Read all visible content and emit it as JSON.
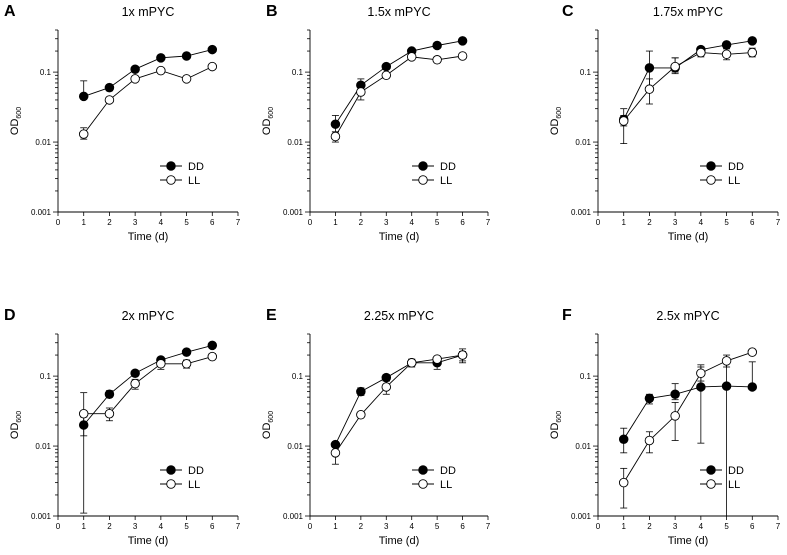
{
  "chart_data": [
    {
      "panel": "A",
      "title": "1x mPYC",
      "type": "line",
      "xlabel": "Time (d)",
      "ylabel": "OD",
      "ylabel_sub": "600",
      "xlim": [
        0,
        7
      ],
      "ylim": [
        0.001,
        0.4
      ],
      "yscale": "log",
      "xticks": [
        "0",
        "1",
        "2",
        "3",
        "4",
        "5",
        "6",
        "7"
      ],
      "yticks": [
        "0.001",
        "0.01",
        "0.1"
      ],
      "legend": [
        "DD",
        "LL"
      ],
      "series": [
        {
          "name": "DD",
          "marker": "filled",
          "x": [
            1,
            2,
            3,
            4,
            5,
            6
          ],
          "y": [
            0.045,
            0.06,
            0.11,
            0.16,
            0.17,
            0.21
          ],
          "err_low": [
            0.045,
            0.054,
            0.11,
            0.16,
            0.17,
            0.21
          ],
          "err_high": [
            0.075,
            0.066,
            0.11,
            0.16,
            0.17,
            0.21
          ]
        },
        {
          "name": "LL",
          "marker": "open",
          "x": [
            1,
            2,
            3,
            4,
            5,
            6
          ],
          "y": [
            0.013,
            0.04,
            0.08,
            0.105,
            0.08,
            0.12
          ],
          "err_low": [
            0.011,
            0.04,
            0.08,
            0.105,
            0.08,
            0.12
          ],
          "err_high": [
            0.016,
            0.04,
            0.08,
            0.105,
            0.08,
            0.12
          ]
        }
      ]
    },
    {
      "panel": "B",
      "title": "1.5x mPYC",
      "type": "line",
      "xlabel": "Time (d)",
      "ylabel": "OD",
      "ylabel_sub": "600",
      "xlim": [
        0,
        7
      ],
      "ylim": [
        0.001,
        0.4
      ],
      "yscale": "log",
      "xticks": [
        "0",
        "1",
        "2",
        "3",
        "4",
        "5",
        "6",
        "7"
      ],
      "yticks": [
        "0.001",
        "0.01",
        "0.1"
      ],
      "legend": [
        "DD",
        "LL"
      ],
      "series": [
        {
          "name": "DD",
          "marker": "filled",
          "x": [
            1,
            2,
            3,
            4,
            5,
            6
          ],
          "y": [
            0.018,
            0.065,
            0.12,
            0.2,
            0.24,
            0.28
          ],
          "err_low": [
            0.014,
            0.055,
            0.12,
            0.2,
            0.24,
            0.28
          ],
          "err_high": [
            0.024,
            0.08,
            0.12,
            0.2,
            0.24,
            0.28
          ]
        },
        {
          "name": "LL",
          "marker": "open",
          "x": [
            1,
            2,
            3,
            4,
            5,
            6
          ],
          "y": [
            0.012,
            0.052,
            0.09,
            0.165,
            0.15,
            0.17
          ],
          "err_low": [
            0.01,
            0.04,
            0.09,
            0.165,
            0.15,
            0.17
          ],
          "err_high": [
            0.014,
            0.065,
            0.09,
            0.165,
            0.15,
            0.17
          ]
        }
      ]
    },
    {
      "panel": "C",
      "title": "1.75x mPYC",
      "type": "line",
      "xlabel": "Time (d)",
      "ylabel": "OD",
      "ylabel_sub": "600",
      "xlim": [
        0,
        7
      ],
      "ylim": [
        0.001,
        0.4
      ],
      "yscale": "log",
      "xticks": [
        "0",
        "1",
        "2",
        "3",
        "4",
        "5",
        "6",
        "7"
      ],
      "yticks": [
        "0.001",
        "0.01",
        "0.1"
      ],
      "legend": [
        "DD",
        "LL"
      ],
      "series": [
        {
          "name": "DD",
          "marker": "filled",
          "x": [
            1,
            2,
            3,
            4,
            5,
            6
          ],
          "y": [
            0.021,
            0.115,
            0.115,
            0.21,
            0.245,
            0.28
          ],
          "err_low": [
            0.0095,
            0.06,
            0.095,
            0.2,
            0.245,
            0.28
          ],
          "err_high": [
            0.03,
            0.2,
            0.16,
            0.23,
            0.245,
            0.28
          ]
        },
        {
          "name": "LL",
          "marker": "open",
          "x": [
            1,
            2,
            3,
            4,
            5,
            6
          ],
          "y": [
            0.02,
            0.057,
            0.12,
            0.19,
            0.18,
            0.19
          ],
          "err_low": [
            0.017,
            0.035,
            0.1,
            0.165,
            0.15,
            0.165
          ],
          "err_high": [
            0.024,
            0.08,
            0.16,
            0.22,
            0.215,
            0.22
          ]
        }
      ]
    },
    {
      "panel": "D",
      "title": "2x mPYC",
      "type": "line",
      "xlabel": "Time (d)",
      "ylabel": "OD",
      "ylabel_sub": "600",
      "xlim": [
        0,
        7
      ],
      "ylim": [
        0.001,
        0.4
      ],
      "yscale": "log",
      "xticks": [
        "0",
        "1",
        "2",
        "3",
        "4",
        "5",
        "6",
        "7"
      ],
      "yticks": [
        "0.001",
        "0.01",
        "0.1"
      ],
      "legend": [
        "DD",
        "LL"
      ],
      "series": [
        {
          "name": "DD",
          "marker": "filled",
          "x": [
            1,
            2,
            3,
            4,
            5,
            6
          ],
          "y": [
            0.02,
            0.055,
            0.11,
            0.17,
            0.22,
            0.275
          ],
          "err_low": [
            0.0011,
            0.05,
            0.11,
            0.17,
            0.22,
            0.275
          ],
          "err_high": [
            0.026,
            0.062,
            0.11,
            0.17,
            0.22,
            0.275
          ]
        },
        {
          "name": "LL",
          "marker": "open",
          "x": [
            1,
            2,
            3,
            4,
            5,
            6
          ],
          "y": [
            0.029,
            0.029,
            0.078,
            0.15,
            0.15,
            0.19
          ],
          "err_low": [
            0.014,
            0.023,
            0.065,
            0.125,
            0.13,
            0.175
          ],
          "err_high": [
            0.058,
            0.035,
            0.09,
            0.175,
            0.17,
            0.21
          ]
        }
      ]
    },
    {
      "panel": "E",
      "title": "2.25x mPYC",
      "type": "line",
      "xlabel": "Time (d)",
      "ylabel": "OD",
      "ylabel_sub": "600",
      "xlim": [
        0,
        7
      ],
      "ylim": [
        0.001,
        0.4
      ],
      "yscale": "log",
      "xticks": [
        "0",
        "1",
        "2",
        "3",
        "4",
        "5",
        "6",
        "7"
      ],
      "yticks": [
        "0.001",
        "0.01",
        "0.1"
      ],
      "legend": [
        "DD",
        "LL"
      ],
      "series": [
        {
          "name": "DD",
          "marker": "filled",
          "x": [
            1,
            2,
            3,
            4,
            5,
            6
          ],
          "y": [
            0.0105,
            0.06,
            0.095,
            0.155,
            0.155,
            0.2
          ],
          "err_low": [
            0.0105,
            0.053,
            0.085,
            0.155,
            0.125,
            0.165
          ],
          "err_high": [
            0.0105,
            0.068,
            0.105,
            0.155,
            0.175,
            0.225
          ]
        },
        {
          "name": "LL",
          "marker": "open",
          "x": [
            1,
            2,
            3,
            4,
            5,
            6
          ],
          "y": [
            0.008,
            0.028,
            0.07,
            0.155,
            0.175,
            0.2
          ],
          "err_low": [
            0.0055,
            0.028,
            0.055,
            0.135,
            0.175,
            0.155
          ],
          "err_high": [
            0.0105,
            0.028,
            0.085,
            0.175,
            0.175,
            0.245
          ]
        }
      ]
    },
    {
      "panel": "F",
      "title": "2.5x mPYC",
      "type": "line",
      "xlabel": "Time (d)",
      "ylabel": "OD",
      "ylabel_sub": "600",
      "xlim": [
        0,
        7
      ],
      "ylim": [
        0.001,
        0.4
      ],
      "yscale": "log",
      "xticks": [
        "0",
        "1",
        "2",
        "3",
        "4",
        "5",
        "6",
        "7"
      ],
      "yticks": [
        "0.001",
        "0.01",
        "0.1"
      ],
      "legend": [
        "DD",
        "LL"
      ],
      "series": [
        {
          "name": "DD",
          "marker": "filled",
          "x": [
            1,
            2,
            3,
            4,
            5,
            6
          ],
          "y": [
            0.0125,
            0.048,
            0.055,
            0.07,
            0.072,
            0.07
          ],
          "err_low": [
            0.008,
            0.04,
            0.046,
            0.011,
            0.001,
            0.07
          ],
          "err_high": [
            0.018,
            0.055,
            0.078,
            0.135,
            0.165,
            0.16
          ]
        },
        {
          "name": "LL",
          "marker": "open",
          "x": [
            1,
            2,
            3,
            4,
            5,
            6
          ],
          "y": [
            0.003,
            0.012,
            0.027,
            0.11,
            0.165,
            0.22
          ],
          "err_low": [
            0.0013,
            0.008,
            0.012,
            0.085,
            0.135,
            0.22
          ],
          "err_high": [
            0.0048,
            0.016,
            0.042,
            0.145,
            0.2,
            0.22
          ]
        }
      ]
    }
  ]
}
